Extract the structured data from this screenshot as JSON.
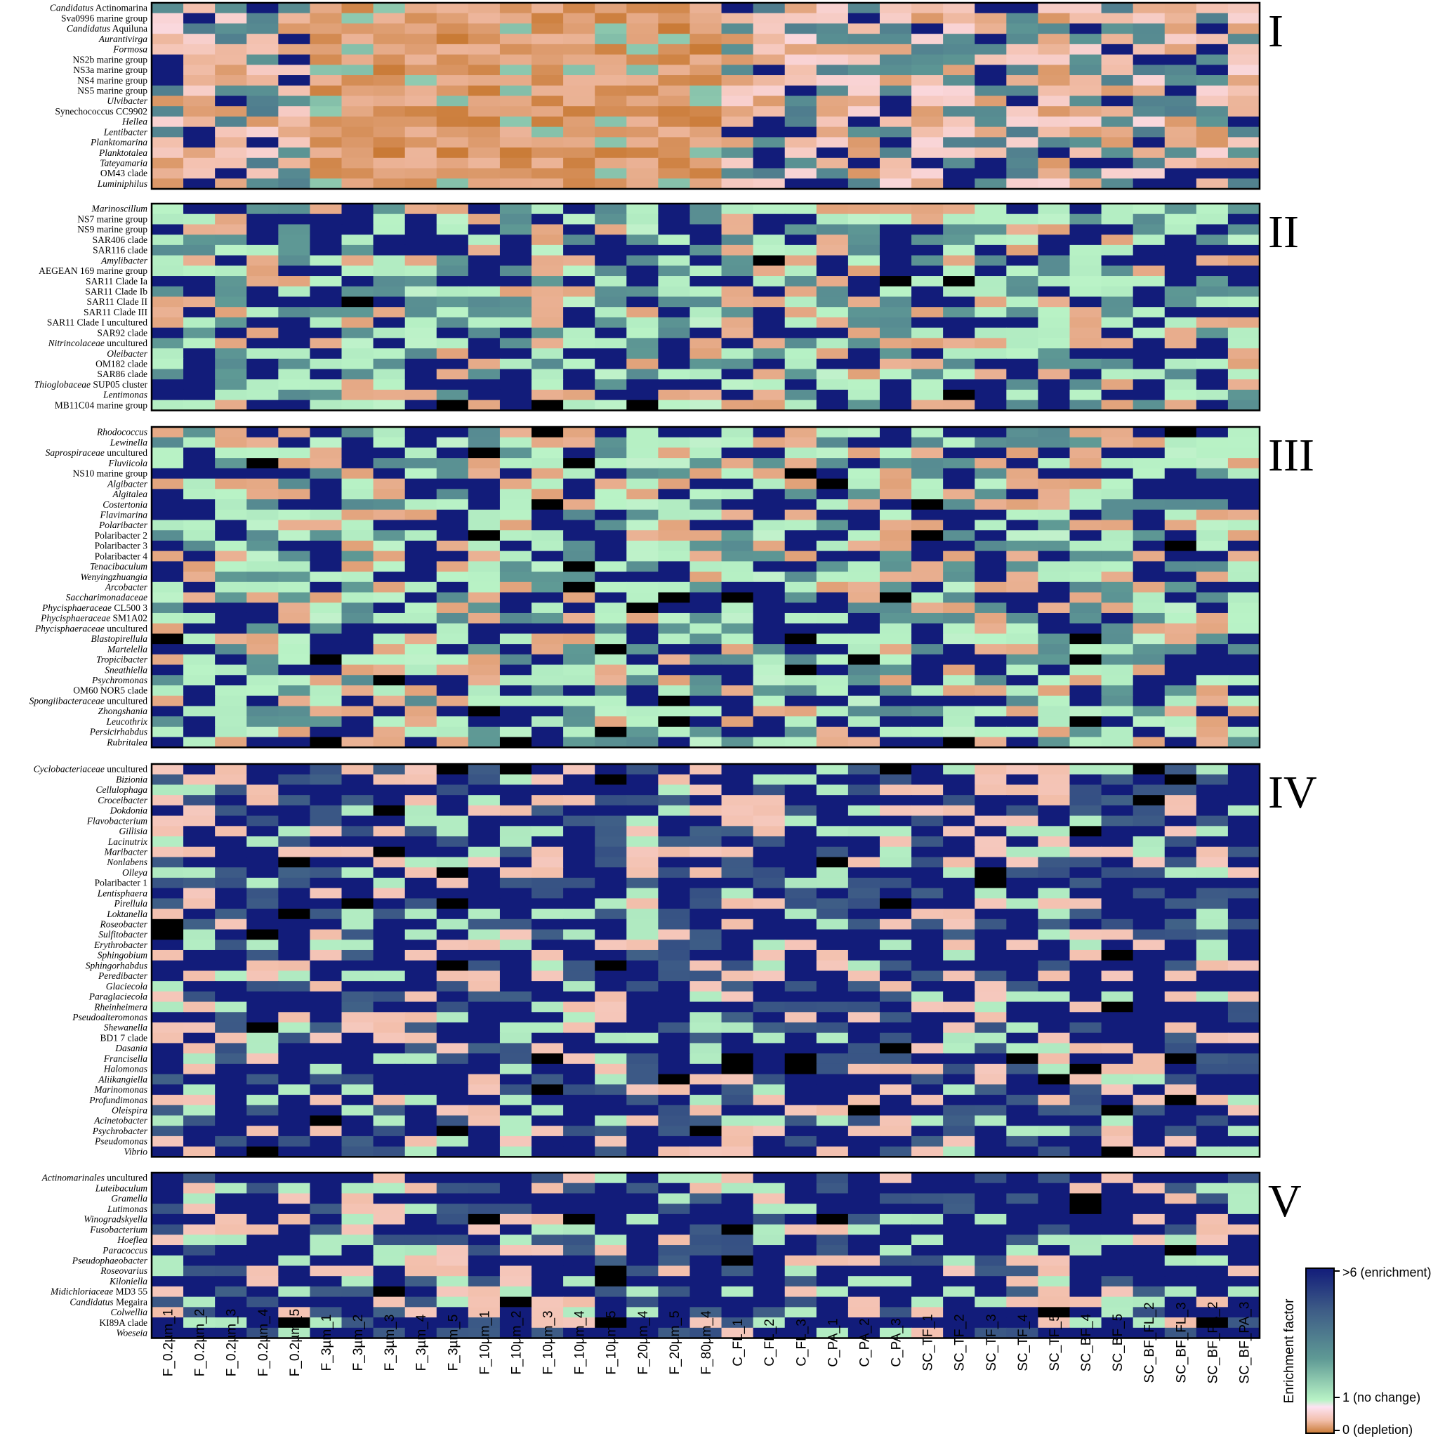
{
  "chart_data": {
    "type": "heatmap",
    "columns": [
      "F_0.2µm_1",
      "F_0.2µm_2",
      "F_0.2µm_3",
      "F_0.2µm_4",
      "F_0.2µm_5",
      "F_3µm_1",
      "F_3µm_2",
      "F_3µm_3",
      "F_3µm_4",
      "F_3µm_5",
      "F_10µm_1",
      "F_10µm_2",
      "F_10µm_3",
      "F_10µm_4",
      "F_10µm_5",
      "F_20µm_4",
      "F_20µm_5",
      "F_80µm_4",
      "C_FL_1",
      "C_FL_2",
      "C_FL_3",
      "C_PA_1",
      "C_PA_2",
      "C_PA_3",
      "SC_TF_1",
      "SC_TF_2",
      "SC_TF_3",
      "SC_TF_4",
      "SC_TF_5",
      "SC_BF_4",
      "SC_BF_5",
      "SC_BF_FL_2",
      "SC_BF_FL_3",
      "SC_BF_PA_2",
      "SC_BF_PA_3"
    ],
    "groups": [
      {
        "label": "I",
        "dominant": "depletion",
        "rows": [
          {
            "pre": "Candidatus",
            "suf": " Actinomarina"
          },
          {
            "pre": "",
            "suf": "Sva0996 marine group"
          },
          {
            "pre": "Candidatus",
            "suf": " Aquiluna"
          },
          {
            "pre": "Aurantivirga",
            "suf": ""
          },
          {
            "pre": "Formosa",
            "suf": ""
          },
          {
            "pre": "",
            "suf": "NS2b marine group"
          },
          {
            "pre": "",
            "suf": "NS3a marine group"
          },
          {
            "pre": "",
            "suf": "NS4 marine group"
          },
          {
            "pre": "",
            "suf": "NS5 marine group"
          },
          {
            "pre": "Ulvibacter",
            "suf": ""
          },
          {
            "pre": "",
            "suf": "Synechococcus CC9902"
          },
          {
            "pre": "Hellea",
            "suf": ""
          },
          {
            "pre": "Lentibacter",
            "suf": ""
          },
          {
            "pre": "Planktomarina",
            "suf": ""
          },
          {
            "pre": "Planktotalea",
            "suf": ""
          },
          {
            "pre": "Tateyamaria",
            "suf": ""
          },
          {
            "pre": "",
            "suf": "OM43 clade"
          },
          {
            "pre": "Luminiphilus",
            "suf": ""
          }
        ]
      },
      {
        "label": "II",
        "dominant": "mixed",
        "rows": [
          {
            "pre": "Marinoscillum",
            "suf": ""
          },
          {
            "pre": "",
            "suf": "NS7 marine group"
          },
          {
            "pre": "",
            "suf": "NS9 marine group"
          },
          {
            "pre": "",
            "suf": "SAR406 clade"
          },
          {
            "pre": "",
            "suf": "SAR116 clade"
          },
          {
            "pre": "Amylibacter",
            "suf": ""
          },
          {
            "pre": "",
            "suf": "AEGEAN 169 marine group"
          },
          {
            "pre": "",
            "suf": "SAR11 Clade Ia"
          },
          {
            "pre": "",
            "suf": "SAR11 Clade Ib"
          },
          {
            "pre": "",
            "suf": "SAR11 Clade II"
          },
          {
            "pre": "",
            "suf": "SAR11 Clade III"
          },
          {
            "pre": "",
            "suf": "SAR11 Clade I uncultured"
          },
          {
            "pre": "",
            "suf": "SAR92 clade"
          },
          {
            "pre": "Nitrincolaceae",
            "suf": " uncultured"
          },
          {
            "pre": "Oleibacter",
            "suf": ""
          },
          {
            "pre": "",
            "suf": "OM182 clade"
          },
          {
            "pre": "",
            "suf": "SAR86 clade"
          },
          {
            "pre": "Thioglobaceae",
            "suf": " SUP05 cluster"
          },
          {
            "pre": "Lentimonas",
            "suf": ""
          },
          {
            "pre": "",
            "suf": "MB11C04 marine group"
          }
        ]
      },
      {
        "label": "III",
        "dominant": "mixed",
        "rows": [
          {
            "pre": "Rhodococcus",
            "suf": ""
          },
          {
            "pre": "Lewinella",
            "suf": ""
          },
          {
            "pre": "Saprospiraceae",
            "suf": " uncultured"
          },
          {
            "pre": "Fluviicola",
            "suf": ""
          },
          {
            "pre": "",
            "suf": "NS10 marine group"
          },
          {
            "pre": "Algibacter",
            "suf": ""
          },
          {
            "pre": "Algitalea",
            "suf": ""
          },
          {
            "pre": "Costertonia",
            "suf": ""
          },
          {
            "pre": "Flavimarina",
            "suf": ""
          },
          {
            "pre": "Polaribacter",
            "suf": ""
          },
          {
            "pre": "",
            "suf": "Polaribacter 2"
          },
          {
            "pre": "",
            "suf": "Polaribacter 3"
          },
          {
            "pre": "",
            "suf": "Polaribacter 4"
          },
          {
            "pre": "Tenacibaculum",
            "suf": ""
          },
          {
            "pre": "Wenyingzhuangia",
            "suf": ""
          },
          {
            "pre": "Arcobacter",
            "suf": ""
          },
          {
            "pre": "Saccharimonadaceae",
            "suf": ""
          },
          {
            "pre": "Phycisphaeraceae",
            "suf": " CL500 3"
          },
          {
            "pre": "Phycisphaeraceae",
            "suf": " SM1A02"
          },
          {
            "pre": "Phycisphaeraceae",
            "suf": " uncultured"
          },
          {
            "pre": "Blastopirellula",
            "suf": ""
          },
          {
            "pre": "Martelella",
            "suf": ""
          },
          {
            "pre": "Tropicibacter",
            "suf": ""
          },
          {
            "pre": "Sneathiella",
            "suf": ""
          },
          {
            "pre": "Psychromonas",
            "suf": ""
          },
          {
            "pre": "",
            "suf": "OM60 NOR5 clade"
          },
          {
            "pre": "Spongiibacteraceae",
            "suf": " uncultured"
          },
          {
            "pre": "Zhongshania",
            "suf": ""
          },
          {
            "pre": "Leucothrix",
            "suf": ""
          },
          {
            "pre": "Persicirhabdus",
            "suf": ""
          },
          {
            "pre": "Rubritalea",
            "suf": ""
          }
        ]
      },
      {
        "label": "IV",
        "dominant": "enrichment",
        "rows": [
          {
            "pre": "Cyclobacteriaceae",
            "suf": " uncultured"
          },
          {
            "pre": "Bizionia",
            "suf": ""
          },
          {
            "pre": "Cellulophaga",
            "suf": ""
          },
          {
            "pre": "Croceibacter",
            "suf": ""
          },
          {
            "pre": "Dokdonia",
            "suf": ""
          },
          {
            "pre": "Flavobacterium",
            "suf": ""
          },
          {
            "pre": "Gillisia",
            "suf": ""
          },
          {
            "pre": "Lacinutrix",
            "suf": ""
          },
          {
            "pre": "Maribacter",
            "suf": ""
          },
          {
            "pre": "Nonlabens",
            "suf": ""
          },
          {
            "pre": "Olleya",
            "suf": ""
          },
          {
            "pre": "",
            "suf": "Polaribacter 1"
          },
          {
            "pre": "Lentisphaera",
            "suf": ""
          },
          {
            "pre": "Pirellula",
            "suf": ""
          },
          {
            "pre": "Loktanella",
            "suf": ""
          },
          {
            "pre": "Roseobacter",
            "suf": ""
          },
          {
            "pre": "Sulfitobacter",
            "suf": ""
          },
          {
            "pre": "Erythrobacter",
            "suf": ""
          },
          {
            "pre": "Sphingobium",
            "suf": ""
          },
          {
            "pre": "Sphingorhabdus",
            "suf": ""
          },
          {
            "pre": "Peredibacter",
            "suf": ""
          },
          {
            "pre": "Glaciecola",
            "suf": ""
          },
          {
            "pre": "Paraglaciecola",
            "suf": ""
          },
          {
            "pre": "Rheinheimera",
            "suf": ""
          },
          {
            "pre": "Pseudoalteromonas",
            "suf": ""
          },
          {
            "pre": "Shewanella",
            "suf": ""
          },
          {
            "pre": "",
            "suf": "BD1 7 clade"
          },
          {
            "pre": "Dasania",
            "suf": ""
          },
          {
            "pre": "Francisella",
            "suf": ""
          },
          {
            "pre": "Halomonas",
            "suf": ""
          },
          {
            "pre": "Aliikangiella",
            "suf": ""
          },
          {
            "pre": "Marinomonas",
            "suf": ""
          },
          {
            "pre": "Profundimonas",
            "suf": ""
          },
          {
            "pre": "Oleispira",
            "suf": ""
          },
          {
            "pre": "Acinetobacter",
            "suf": ""
          },
          {
            "pre": "Psychrobacter",
            "suf": ""
          },
          {
            "pre": "Pseudomonas",
            "suf": ""
          },
          {
            "pre": "Vibrio",
            "suf": ""
          }
        ]
      },
      {
        "label": "V",
        "dominant": "enrichment",
        "rows": [
          {
            "pre": "Actinomarinales",
            "suf": " uncultured"
          },
          {
            "pre": "Luteibaculum",
            "suf": ""
          },
          {
            "pre": "Gramella",
            "suf": ""
          },
          {
            "pre": "Lutimonas",
            "suf": ""
          },
          {
            "pre": "Winogradskyella",
            "suf": ""
          },
          {
            "pre": "Fusobacterium",
            "suf": ""
          },
          {
            "pre": "Hoeflea",
            "suf": ""
          },
          {
            "pre": "Paracoccus",
            "suf": ""
          },
          {
            "pre": "Pseudophaeobacter",
            "suf": ""
          },
          {
            "pre": "Roseovarius",
            "suf": ""
          },
          {
            "pre": "Kiloniella",
            "suf": ""
          },
          {
            "pre": "Midichloriaceae",
            "suf": " MD3 55"
          },
          {
            "pre": "Candidatus",
            "suf": " Megaira"
          },
          {
            "pre": "Colwellia",
            "suf": ""
          },
          {
            "pre": "",
            "suf": "KI89A clade"
          },
          {
            "pre": "Woeseia",
            "suf": ""
          }
        ]
      }
    ],
    "color_scale": {
      "title": "Enrichment factor",
      "max_label": ">6 (enrichment)",
      "mid_label": "1 (no change)",
      "min_label": "0 (depletion)",
      "stops": [
        {
          "value": 0,
          "color": "#c97a35"
        },
        {
          "value": 0.5,
          "color": "#f3c0ad"
        },
        {
          "value": 0.85,
          "color": "#fde3f3"
        },
        {
          "value": 1,
          "color": "#b9f3c6"
        },
        {
          "value": 2,
          "color": "#5f9a95"
        },
        {
          "value": 3.5,
          "color": "#3d5b86"
        },
        {
          "value": 6,
          "color": "#121c7a"
        }
      ],
      "overflow_color": "#000000"
    }
  }
}
